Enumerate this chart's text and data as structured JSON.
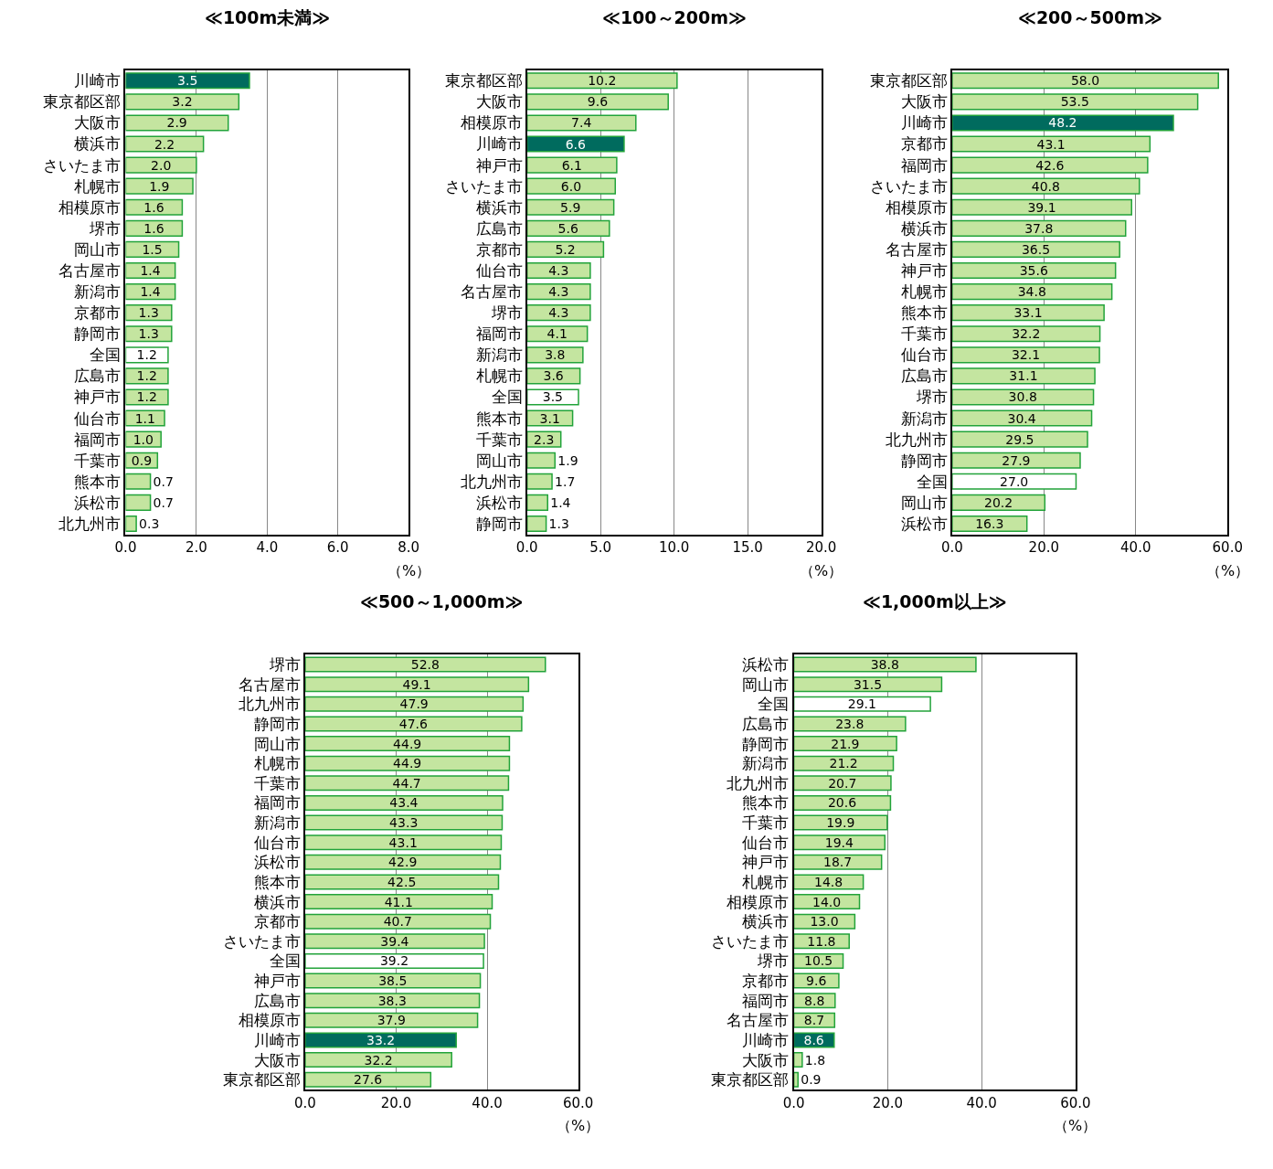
{
  "chart_data": [
    {
      "type": "bar",
      "orientation": "horizontal",
      "title": "≪100m未満≫",
      "xlabel": "（%）",
      "grid": "x",
      "xlim": [
        0,
        8
      ],
      "xticks": [
        {
          "value": 0,
          "label": "0.0"
        },
        {
          "value": 2,
          "label": "2.0"
        },
        {
          "value": 4,
          "label": "4.0"
        },
        {
          "value": 6,
          "label": "6.0"
        },
        {
          "value": 8,
          "label": "8.0"
        }
      ],
      "categories": [
        "川崎市",
        "東京都区部",
        "大阪市",
        "横浜市",
        "さいたま市",
        "札幌市",
        "相模原市",
        "堺市",
        "岡山市",
        "名古屋市",
        "新潟市",
        "京都市",
        "静岡市",
        "全国",
        "広島市",
        "神戸市",
        "仙台市",
        "福岡市",
        "千葉市",
        "熊本市",
        "浜松市",
        "北九州市"
      ],
      "values": [
        3.5,
        3.2,
        2.9,
        2.2,
        2.0,
        1.9,
        1.6,
        1.6,
        1.5,
        1.4,
        1.4,
        1.3,
        1.3,
        1.2,
        1.2,
        1.2,
        1.1,
        1.0,
        0.9,
        0.7,
        0.7,
        0.3
      ],
      "value_labels": [
        "3.5",
        "3.2",
        "2.9",
        "2.2",
        "2.0",
        "1.9",
        "1.6",
        "1.6",
        "1.5",
        "1.4",
        "1.4",
        "1.3",
        "1.3",
        "1.2",
        "1.2",
        "1.2",
        "1.1",
        "1.0",
        "0.9",
        "0.7",
        "0.7",
        "0.3"
      ],
      "colors": [
        "#006b5e",
        "#c4e5a0",
        "#c4e5a0",
        "#c4e5a0",
        "#c4e5a0",
        "#c4e5a0",
        "#c4e5a0",
        "#c4e5a0",
        "#c4e5a0",
        "#c4e5a0",
        "#c4e5a0",
        "#c4e5a0",
        "#c4e5a0",
        "#ffffff",
        "#c4e5a0",
        "#c4e5a0",
        "#c4e5a0",
        "#c4e5a0",
        "#c4e5a0",
        "#c4e5a0",
        "#c4e5a0",
        "#c4e5a0"
      ]
    },
    {
      "type": "bar",
      "orientation": "horizontal",
      "title": "≪100～200m≫",
      "xlabel": "（%）",
      "grid": "x",
      "xlim": [
        0,
        20
      ],
      "xticks": [
        {
          "value": 0,
          "label": "0.0"
        },
        {
          "value": 5,
          "label": "5.0"
        },
        {
          "value": 10,
          "label": "10.0"
        },
        {
          "value": 15,
          "label": "15.0"
        },
        {
          "value": 20,
          "label": "20.0"
        }
      ],
      "categories": [
        "東京都区部",
        "大阪市",
        "相模原市",
        "川崎市",
        "神戸市",
        "さいたま市",
        "横浜市",
        "広島市",
        "京都市",
        "仙台市",
        "名古屋市",
        "堺市",
        "福岡市",
        "新潟市",
        "札幌市",
        "全国",
        "熊本市",
        "千葉市",
        "岡山市",
        "北九州市",
        "浜松市",
        "静岡市"
      ],
      "values": [
        10.2,
        9.6,
        7.4,
        6.6,
        6.1,
        6.0,
        5.9,
        5.6,
        5.2,
        4.3,
        4.3,
        4.3,
        4.1,
        3.8,
        3.6,
        3.5,
        3.1,
        2.3,
        1.9,
        1.7,
        1.4,
        1.3
      ],
      "value_labels": [
        "10.2",
        "9.6",
        "7.4",
        "6.6",
        "6.1",
        "6.0",
        "5.9",
        "5.6",
        "5.2",
        "4.3",
        "4.3",
        "4.3",
        "4.1",
        "3.8",
        "3.6",
        "3.5",
        "3.1",
        "2.3",
        "1.9",
        "1.7",
        "1.4",
        "1.3"
      ],
      "colors": [
        "#c4e5a0",
        "#c4e5a0",
        "#c4e5a0",
        "#006b5e",
        "#c4e5a0",
        "#c4e5a0",
        "#c4e5a0",
        "#c4e5a0",
        "#c4e5a0",
        "#c4e5a0",
        "#c4e5a0",
        "#c4e5a0",
        "#c4e5a0",
        "#c4e5a0",
        "#c4e5a0",
        "#ffffff",
        "#c4e5a0",
        "#c4e5a0",
        "#c4e5a0",
        "#c4e5a0",
        "#c4e5a0",
        "#c4e5a0"
      ]
    },
    {
      "type": "bar",
      "orientation": "horizontal",
      "title": "≪200～500m≫",
      "xlabel": "（%）",
      "grid": "x",
      "xlim": [
        0,
        60
      ],
      "xticks": [
        {
          "value": 0,
          "label": "0.0"
        },
        {
          "value": 20,
          "label": "20.0"
        },
        {
          "value": 40,
          "label": "40.0"
        },
        {
          "value": 60,
          "label": "60.0"
        }
      ],
      "categories": [
        "東京都区部",
        "大阪市",
        "川崎市",
        "京都市",
        "福岡市",
        "さいたま市",
        "相模原市",
        "横浜市",
        "名古屋市",
        "神戸市",
        "札幌市",
        "熊本市",
        "千葉市",
        "仙台市",
        "広島市",
        "堺市",
        "新潟市",
        "北九州市",
        "静岡市",
        "全国",
        "岡山市",
        "浜松市"
      ],
      "values": [
        58.0,
        53.5,
        48.2,
        43.1,
        42.6,
        40.8,
        39.1,
        37.8,
        36.5,
        35.6,
        34.8,
        33.1,
        32.2,
        32.1,
        31.1,
        30.8,
        30.4,
        29.5,
        27.9,
        27.0,
        20.2,
        16.3
      ],
      "value_labels": [
        "58.0",
        "53.5",
        "48.2",
        "43.1",
        "42.6",
        "40.8",
        "39.1",
        "37.8",
        "36.5",
        "35.6",
        "34.8",
        "33.1",
        "32.2",
        "32.1",
        "31.1",
        "30.8",
        "30.4",
        "29.5",
        "27.9",
        "27.0",
        "20.2",
        "16.3"
      ],
      "colors": [
        "#c4e5a0",
        "#c4e5a0",
        "#006b5e",
        "#c4e5a0",
        "#c4e5a0",
        "#c4e5a0",
        "#c4e5a0",
        "#c4e5a0",
        "#c4e5a0",
        "#c4e5a0",
        "#c4e5a0",
        "#c4e5a0",
        "#c4e5a0",
        "#c4e5a0",
        "#c4e5a0",
        "#c4e5a0",
        "#c4e5a0",
        "#c4e5a0",
        "#c4e5a0",
        "#ffffff",
        "#c4e5a0",
        "#c4e5a0"
      ]
    },
    {
      "type": "bar",
      "orientation": "horizontal",
      "title": "≪500～1,000m≫",
      "xlabel": "（%）",
      "grid": "x",
      "xlim": [
        0,
        60
      ],
      "xticks": [
        {
          "value": 0,
          "label": "0.0"
        },
        {
          "value": 20,
          "label": "20.0"
        },
        {
          "value": 40,
          "label": "40.0"
        },
        {
          "value": 60,
          "label": "60.0"
        }
      ],
      "categories": [
        "堺市",
        "名古屋市",
        "北九州市",
        "静岡市",
        "岡山市",
        "札幌市",
        "千葉市",
        "福岡市",
        "新潟市",
        "仙台市",
        "浜松市",
        "熊本市",
        "横浜市",
        "京都市",
        "さいたま市",
        "全国",
        "神戸市",
        "広島市",
        "相模原市",
        "川崎市",
        "大阪市",
        "東京都区部"
      ],
      "values": [
        52.8,
        49.1,
        47.9,
        47.6,
        44.9,
        44.9,
        44.7,
        43.4,
        43.3,
        43.1,
        42.9,
        42.5,
        41.1,
        40.7,
        39.4,
        39.2,
        38.5,
        38.3,
        37.9,
        33.2,
        32.2,
        27.6
      ],
      "value_labels": [
        "52.8",
        "49.1",
        "47.9",
        "47.6",
        "44.9",
        "44.9",
        "44.7",
        "43.4",
        "43.3",
        "43.1",
        "42.9",
        "42.5",
        "41.1",
        "40.7",
        "39.4",
        "39.2",
        "38.5",
        "38.3",
        "37.9",
        "33.2",
        "32.2",
        "27.6"
      ],
      "colors": [
        "#c4e5a0",
        "#c4e5a0",
        "#c4e5a0",
        "#c4e5a0",
        "#c4e5a0",
        "#c4e5a0",
        "#c4e5a0",
        "#c4e5a0",
        "#c4e5a0",
        "#c4e5a0",
        "#c4e5a0",
        "#c4e5a0",
        "#c4e5a0",
        "#c4e5a0",
        "#c4e5a0",
        "#ffffff",
        "#c4e5a0",
        "#c4e5a0",
        "#c4e5a0",
        "#006b5e",
        "#c4e5a0",
        "#c4e5a0"
      ]
    },
    {
      "type": "bar",
      "orientation": "horizontal",
      "title": "≪1,000m以上≫",
      "xlabel": "（%）",
      "grid": "x",
      "xlim": [
        0,
        60
      ],
      "xticks": [
        {
          "value": 0,
          "label": "0.0"
        },
        {
          "value": 20,
          "label": "20.0"
        },
        {
          "value": 40,
          "label": "40.0"
        },
        {
          "value": 60,
          "label": "60.0"
        }
      ],
      "categories": [
        "浜松市",
        "岡山市",
        "全国",
        "広島市",
        "静岡市",
        "新潟市",
        "北九州市",
        "熊本市",
        "千葉市",
        "仙台市",
        "神戸市",
        "札幌市",
        "相模原市",
        "横浜市",
        "さいたま市",
        "堺市",
        "京都市",
        "福岡市",
        "名古屋市",
        "川崎市",
        "大阪市",
        "東京都区部"
      ],
      "values": [
        38.8,
        31.5,
        29.1,
        23.8,
        21.9,
        21.2,
        20.7,
        20.6,
        19.9,
        19.4,
        18.7,
        14.8,
        14.0,
        13.0,
        11.8,
        10.5,
        9.6,
        8.8,
        8.7,
        8.6,
        1.8,
        0.9
      ],
      "value_labels": [
        "38.8",
        "31.5",
        "29.1",
        "23.8",
        "21.9",
        "21.2",
        "20.7",
        "20.6",
        "19.9",
        "19.4",
        "18.7",
        "14.8",
        "14.0",
        "13.0",
        "11.8",
        "10.5",
        "9.6",
        "8.8",
        "8.7",
        "8.6",
        "1.8",
        "0.9"
      ],
      "colors": [
        "#c4e5a0",
        "#c4e5a0",
        "#ffffff",
        "#c4e5a0",
        "#c4e5a0",
        "#c4e5a0",
        "#c4e5a0",
        "#c4e5a0",
        "#c4e5a0",
        "#c4e5a0",
        "#c4e5a0",
        "#c4e5a0",
        "#c4e5a0",
        "#c4e5a0",
        "#c4e5a0",
        "#c4e5a0",
        "#c4e5a0",
        "#c4e5a0",
        "#c4e5a0",
        "#006b5e",
        "#c4e5a0",
        "#c4e5a0"
      ]
    }
  ]
}
